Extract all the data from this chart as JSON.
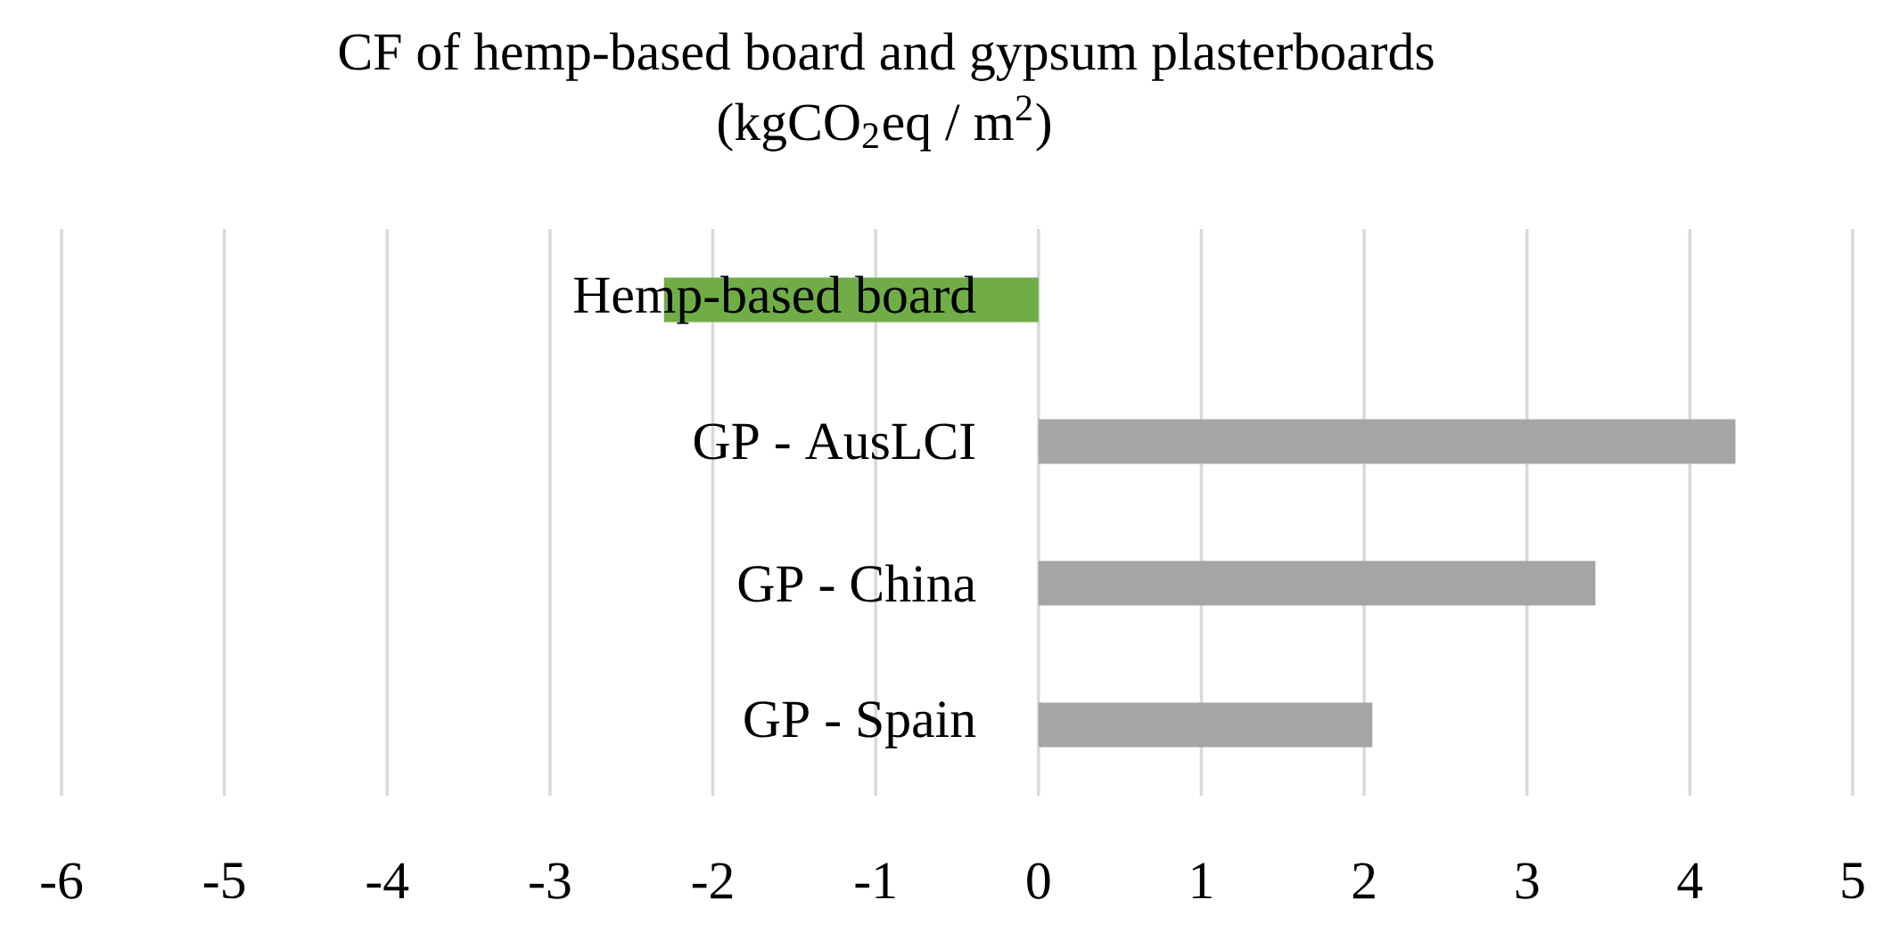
{
  "chart_data": {
    "type": "bar",
    "orientation": "horizontal",
    "title": "CF of hemp-based board and gypsum plasterboards",
    "subtitle": "(kgCO$_{2}$eq / m$^{2}$)",
    "categories": [
      "Hemp-based board",
      "GP - AusLCI",
      "GP - China",
      "GP - Spain"
    ],
    "values": [
      -2.3,
      4.28,
      3.42,
      2.05
    ],
    "colors": [
      "#70ad47",
      "#a5a5a5",
      "#a5a5a5",
      "#a5a5a5"
    ],
    "xlim": [
      -6,
      5
    ],
    "xticks": [
      -6,
      -5,
      -4,
      -3,
      -2,
      -1,
      0,
      1,
      2,
      3,
      4,
      5
    ],
    "grid": "x"
  }
}
